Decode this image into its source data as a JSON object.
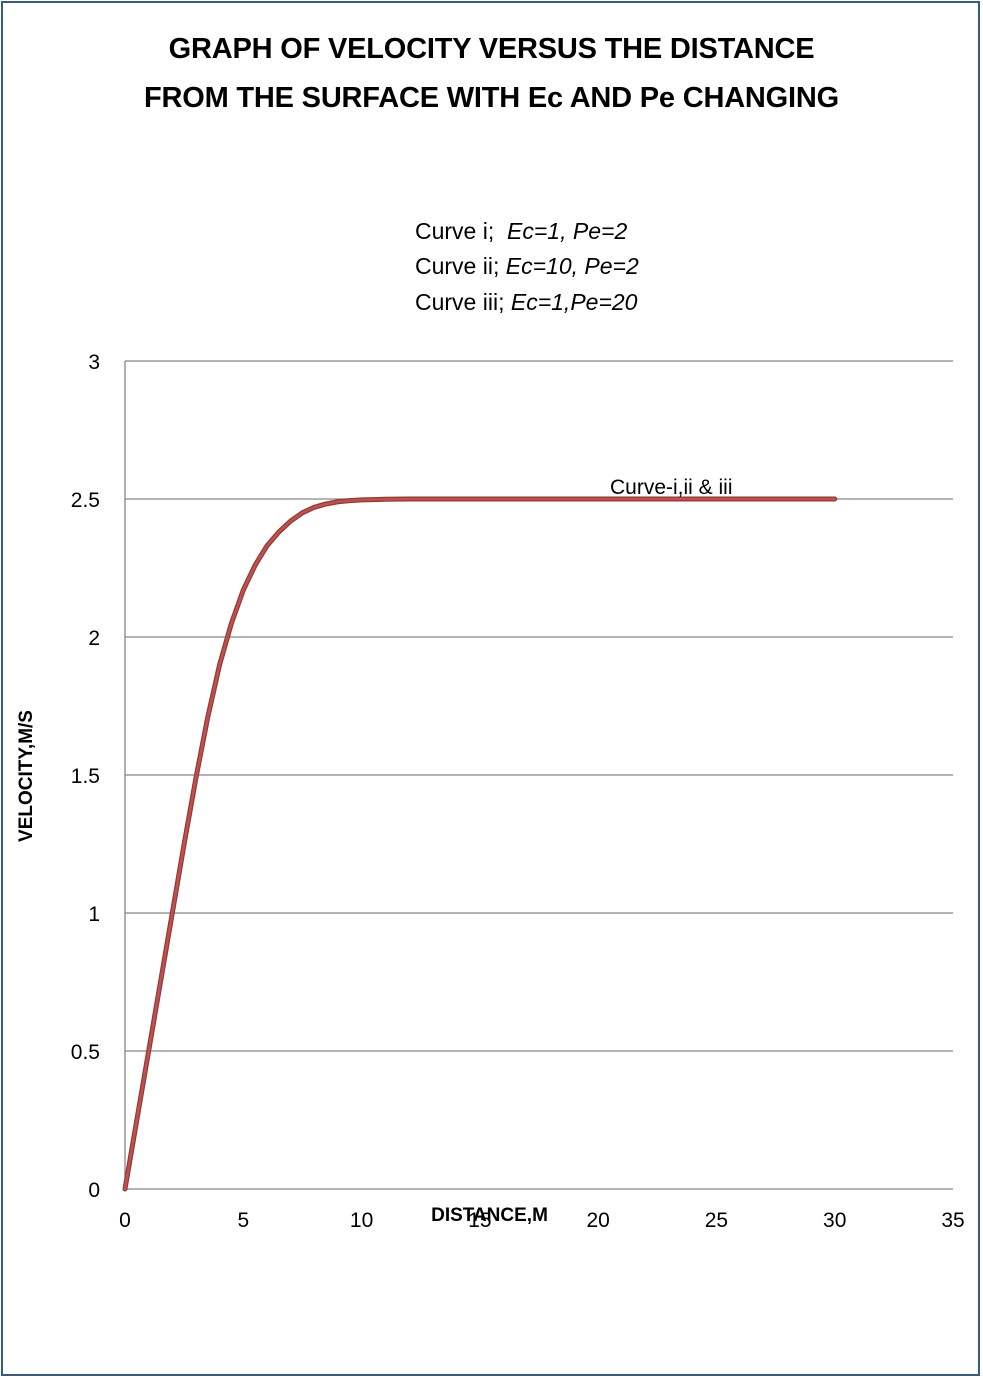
{
  "chart_data": {
    "type": "line",
    "title_line1": "GRAPH OF VELOCITY VERSUS THE DISTANCE",
    "title_line2": "FROM THE SURFACE WITH Ec AND Pe CHANGING",
    "notes": [
      {
        "name": "Curve i;",
        "params": "Ec=1, Pe=2"
      },
      {
        "name": "Curve ii;",
        "params": "Ec=10, Pe=2"
      },
      {
        "name": "Curve iii;",
        "params": "Ec=1,Pe=20"
      }
    ],
    "xlabel": "DISTANCE,M",
    "ylabel": "VELOCITY,M/S",
    "xlim": [
      0,
      35
    ],
    "ylim": [
      0,
      3
    ],
    "xticks": [
      0,
      5,
      10,
      15,
      20,
      25,
      30,
      35
    ],
    "yticks": [
      0,
      0.5,
      1,
      1.5,
      2,
      2.5,
      3
    ],
    "grid": "horizontal",
    "annotation": "Curve-i,ii & iii",
    "series": [
      {
        "name": "Curve-i,ii & iii",
        "color": "#c0504d",
        "x": [
          0,
          0.5,
          1,
          1.5,
          2,
          2.5,
          3,
          3.5,
          4,
          4.5,
          5,
          5.5,
          6,
          6.5,
          7,
          7.5,
          8,
          8.5,
          9,
          9.5,
          10,
          11,
          12,
          13,
          14,
          15,
          20,
          25,
          30
        ],
        "y": [
          0,
          0.25,
          0.5,
          0.75,
          1.0,
          1.25,
          1.49,
          1.71,
          1.9,
          2.05,
          2.17,
          2.26,
          2.33,
          2.38,
          2.42,
          2.45,
          2.47,
          2.482,
          2.49,
          2.494,
          2.497,
          2.499,
          2.5,
          2.5,
          2.5,
          2.5,
          2.5,
          2.5,
          2.5
        ]
      }
    ]
  }
}
